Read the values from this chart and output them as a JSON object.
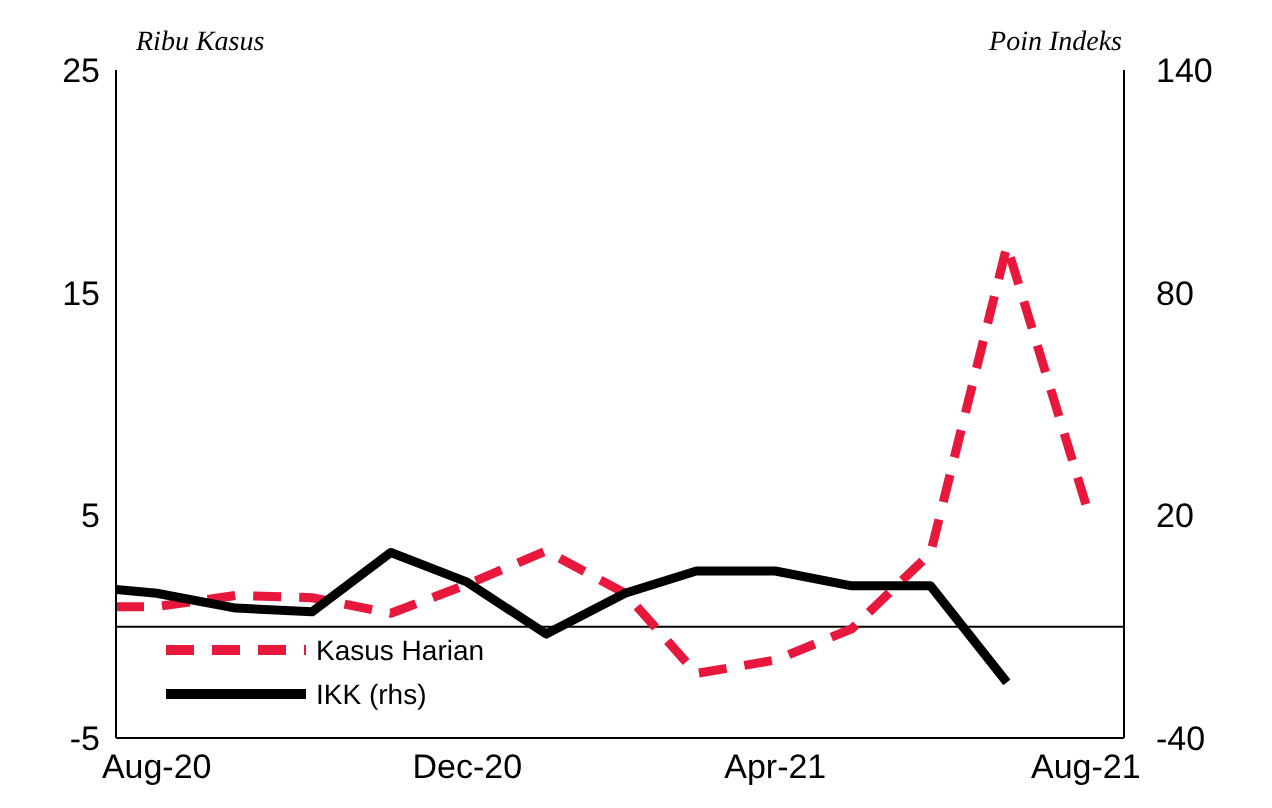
{
  "chart_data": {
    "type": "line",
    "ylabel": "Ribu Kasus",
    "y2label": "Poin Indeks",
    "xlim": [
      "2020-07-16",
      "2021-08-16"
    ],
    "xticks": [
      {
        "value": "2020-08",
        "label": "Aug-20"
      },
      {
        "value": "2020-12",
        "label": "Dec-20"
      },
      {
        "value": "2021-04",
        "label": "Apr-21"
      },
      {
        "value": "2021-08",
        "label": "Aug-21"
      }
    ],
    "ylim": [
      -5,
      25
    ],
    "yticks": [
      -5,
      5,
      15,
      25
    ],
    "y2lim": [
      -40,
      140
    ],
    "y2ticks": [
      -40,
      20,
      80,
      140
    ],
    "series": [
      {
        "name": "Kasus Harian",
        "color": "#e8173c",
        "line_style": "dashed",
        "x": [
          "2020-07-16",
          "2020-08",
          "2020-09",
          "2020-10",
          "2020-11",
          "2020-12",
          "2021-01",
          "2021-02",
          "2021-03",
          "2021-04",
          "2021-05",
          "2021-06",
          "2021-07",
          "2021-08"
        ],
        "values": [
          0.9,
          0.9,
          1.4,
          1.3,
          0.6,
          1.9,
          3.4,
          1.5,
          -2.1,
          -1.5,
          -0.1,
          3.3,
          17.1,
          5.5
        ]
      },
      {
        "name": "IKK (rhs)",
        "color": "#000000",
        "line_style": "solid",
        "axis": "y2",
        "x": [
          "2020-07-16",
          "2020-08",
          "2020-09",
          "2020-10",
          "2020-11",
          "2020-12",
          "2021-01",
          "2021-02",
          "2021-03",
          "2021-04",
          "2021-05",
          "2021-06",
          "2021-07"
        ],
        "values": [
          0,
          -1,
          -5,
          -6,
          10,
          2,
          -12,
          -1,
          5,
          5,
          1,
          1,
          -25
        ]
      }
    ],
    "ref_lines": [
      {
        "axis": "y",
        "value": 0,
        "color": "#000000"
      }
    ],
    "grid": false,
    "legend": "bottom left",
    "marker": "none"
  }
}
